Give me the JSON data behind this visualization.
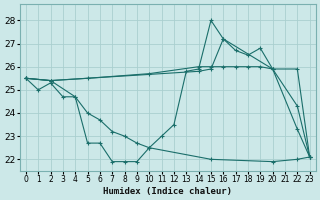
{
  "xlabel": "Humidex (Indice chaleur)",
  "x_ticks": [
    0,
    1,
    2,
    3,
    4,
    5,
    6,
    7,
    8,
    9,
    10,
    11,
    12,
    13,
    14,
    15,
    16,
    17,
    18,
    19,
    20,
    21,
    22,
    23
  ],
  "ylim": [
    21.5,
    28.7
  ],
  "xlim": [
    -0.5,
    23.5
  ],
  "yticks": [
    22,
    23,
    24,
    25,
    26,
    27,
    28
  ],
  "bg_color": "#cce8e8",
  "grid_color": "#aacfcf",
  "line_color": "#1a6e6a",
  "lines": [
    {
      "x": [
        0,
        1,
        2,
        3,
        4,
        5,
        6,
        7,
        8,
        9,
        10,
        11,
        12,
        13,
        14,
        15,
        16,
        20,
        22,
        23
      ],
      "y": [
        25.5,
        25.0,
        25.3,
        24.7,
        24.7,
        22.7,
        22.7,
        21.9,
        21.9,
        21.9,
        22.5,
        23.0,
        23.5,
        25.8,
        25.9,
        28.0,
        27.2,
        25.9,
        23.3,
        22.1
      ]
    },
    {
      "x": [
        0,
        2,
        14,
        15,
        16,
        17,
        18,
        19,
        20,
        22,
        23
      ],
      "y": [
        25.5,
        25.4,
        25.8,
        25.9,
        27.2,
        26.7,
        26.5,
        26.8,
        25.9,
        24.3,
        22.1
      ]
    },
    {
      "x": [
        0,
        2,
        5,
        10,
        14,
        15,
        16,
        17,
        18,
        19,
        20,
        22,
        23
      ],
      "y": [
        25.5,
        25.4,
        25.5,
        25.7,
        26.0,
        26.0,
        26.0,
        26.0,
        26.0,
        26.0,
        25.9,
        25.9,
        22.1
      ]
    },
    {
      "x": [
        0,
        2,
        4,
        5,
        6,
        7,
        8,
        9,
        10,
        15,
        20,
        22,
        23
      ],
      "y": [
        25.5,
        25.4,
        24.7,
        24.0,
        23.7,
        23.2,
        23.0,
        22.7,
        22.5,
        22.0,
        21.9,
        22.0,
        22.1
      ]
    }
  ]
}
